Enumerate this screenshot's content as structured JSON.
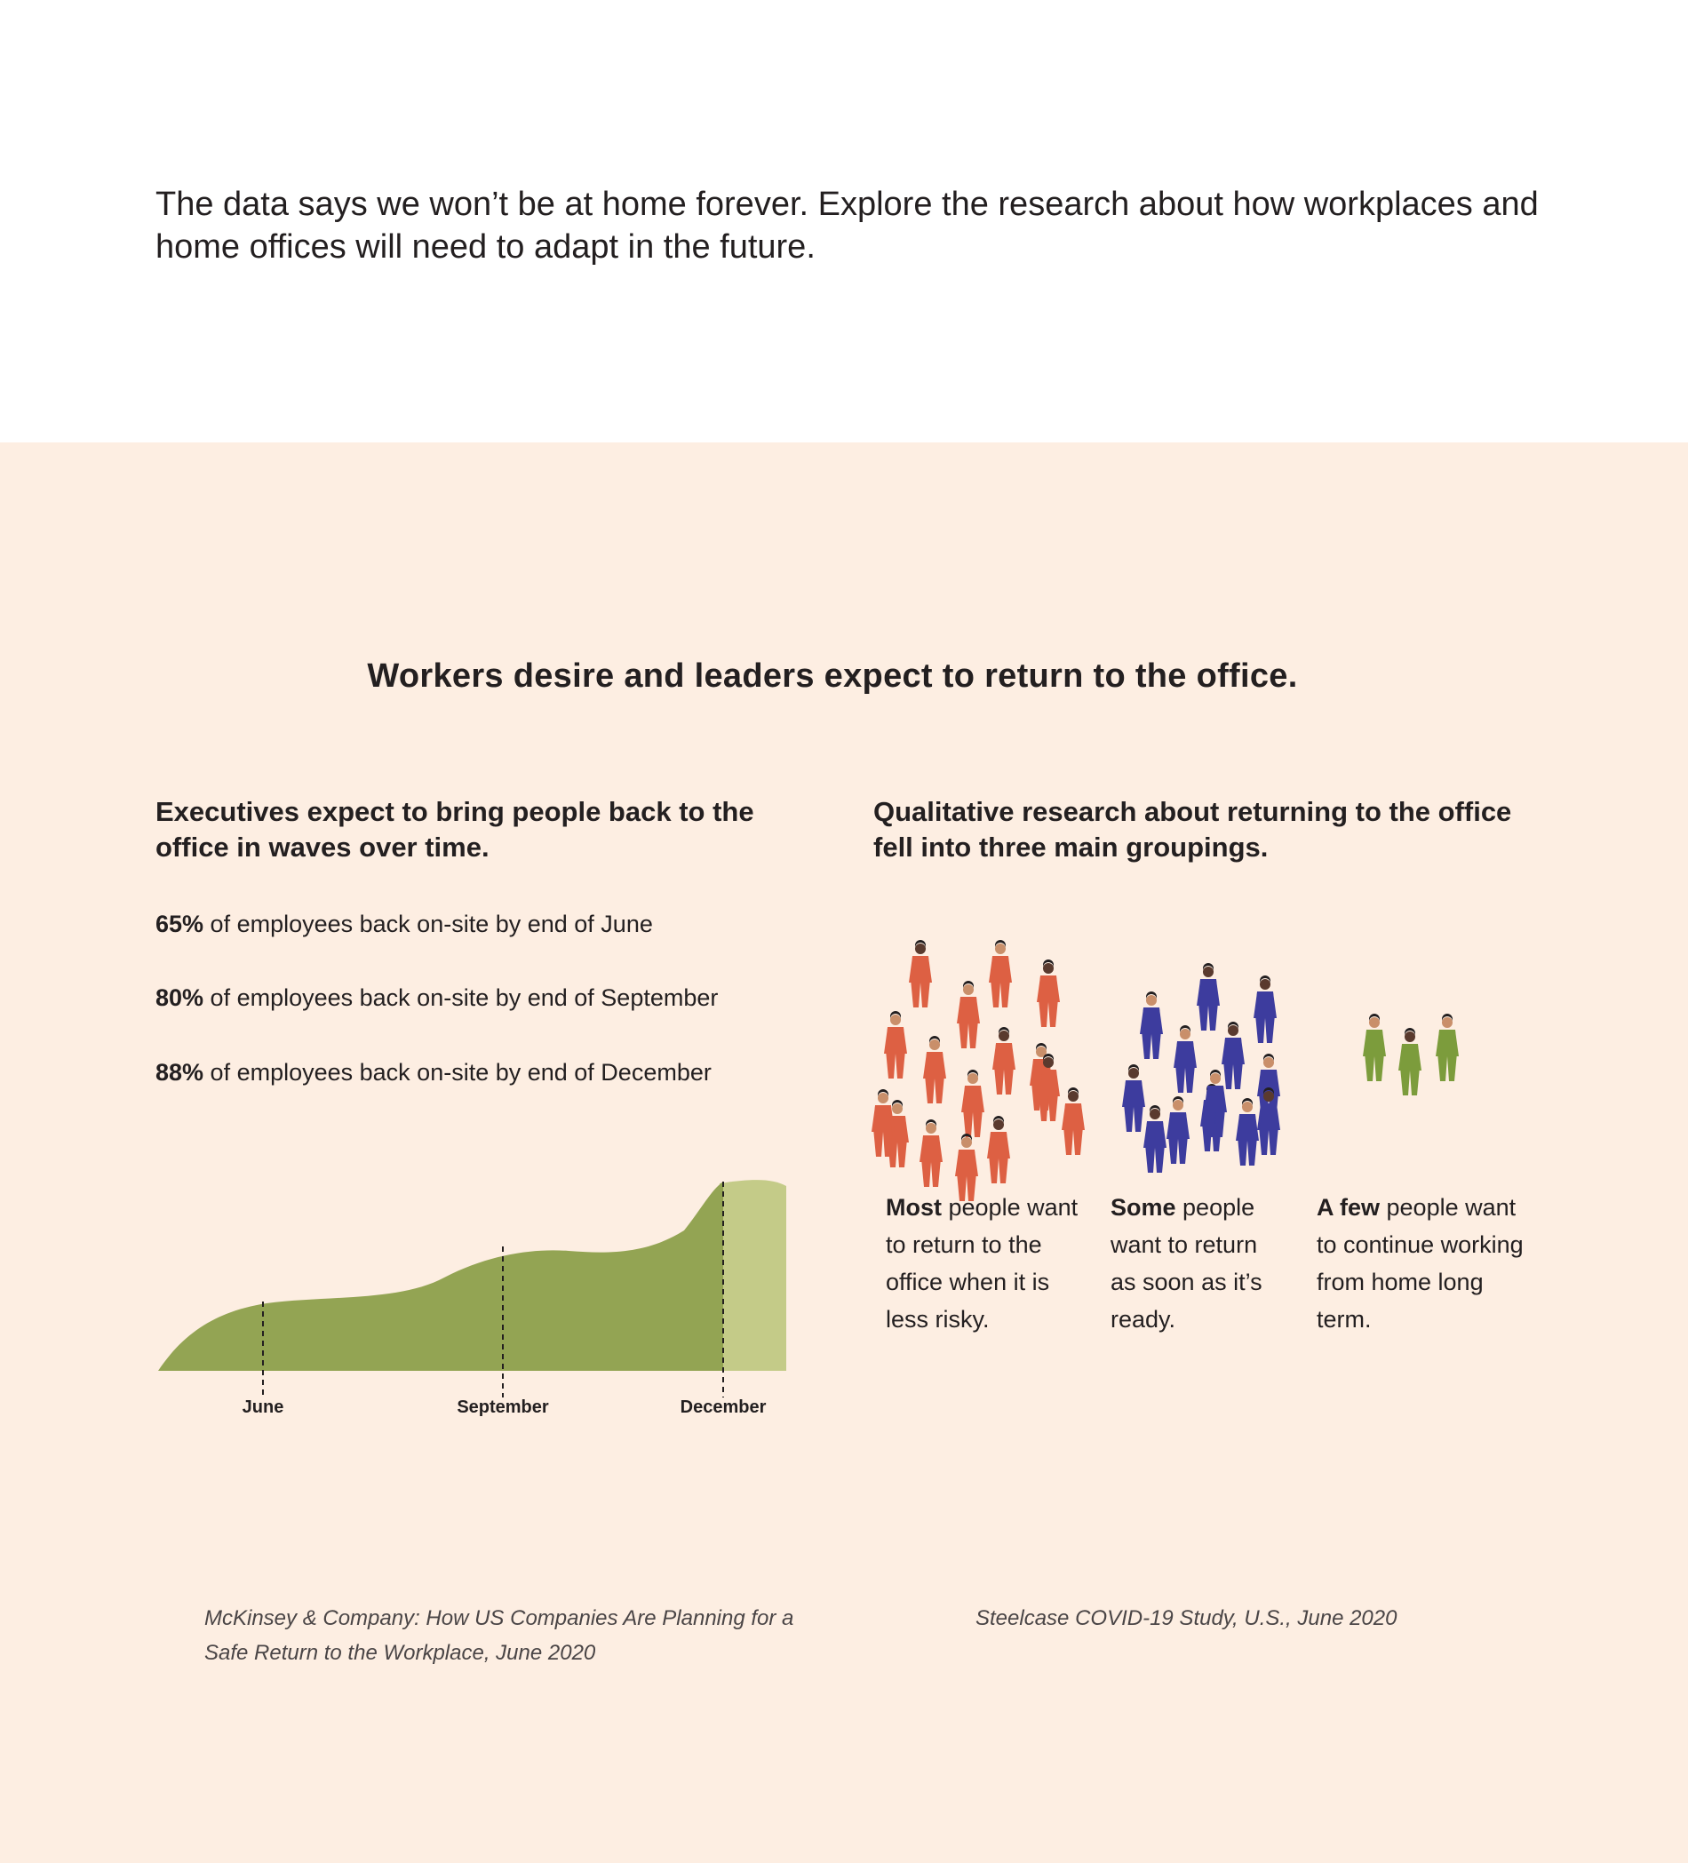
{
  "intro": {
    "text": "The data says we won’t be at home forever. Explore the research about how workplaces and home offices will need to adapt in the future."
  },
  "headline": "Workers desire and leaders expect to return to the office.",
  "left": {
    "heading": "Executives expect to bring people back to the office in waves over time.",
    "stats": [
      {
        "pct": "65%",
        "text": " of employees back on-site by end of June"
      },
      {
        "pct": "80%",
        "text": " of employees back on-site by end of September"
      },
      {
        "pct": "88%",
        "text": " of employees back on-site by end of December"
      }
    ],
    "source": "McKinsey & Company: How US Companies Are Planning for a Safe Return to the Workplace, June 2020"
  },
  "chart_data": {
    "type": "area",
    "categories": [
      "June",
      "September",
      "December"
    ],
    "values": [
      65,
      80,
      88
    ],
    "colors": {
      "filled": "#93a453",
      "projected": "#c4cb88"
    }
  },
  "right": {
    "heading": "Qualitative research about returning to the office fell into three main groupings.",
    "groups": [
      {
        "bold": "Most",
        "text": " people want to return to the office when it is less risky.",
        "color": "#dd6043",
        "count": 16
      },
      {
        "bold": "Some",
        "text": " people want to return as soon as it’s ready.",
        "color": "#3d3c9e",
        "count": 13
      },
      {
        "bold": "A few",
        "text": " people want to continue working from home long term.",
        "color": "#7c9c3c",
        "count": 3
      }
    ],
    "source": "Steelcase COVID-19 Study, U.S., June 2020"
  }
}
